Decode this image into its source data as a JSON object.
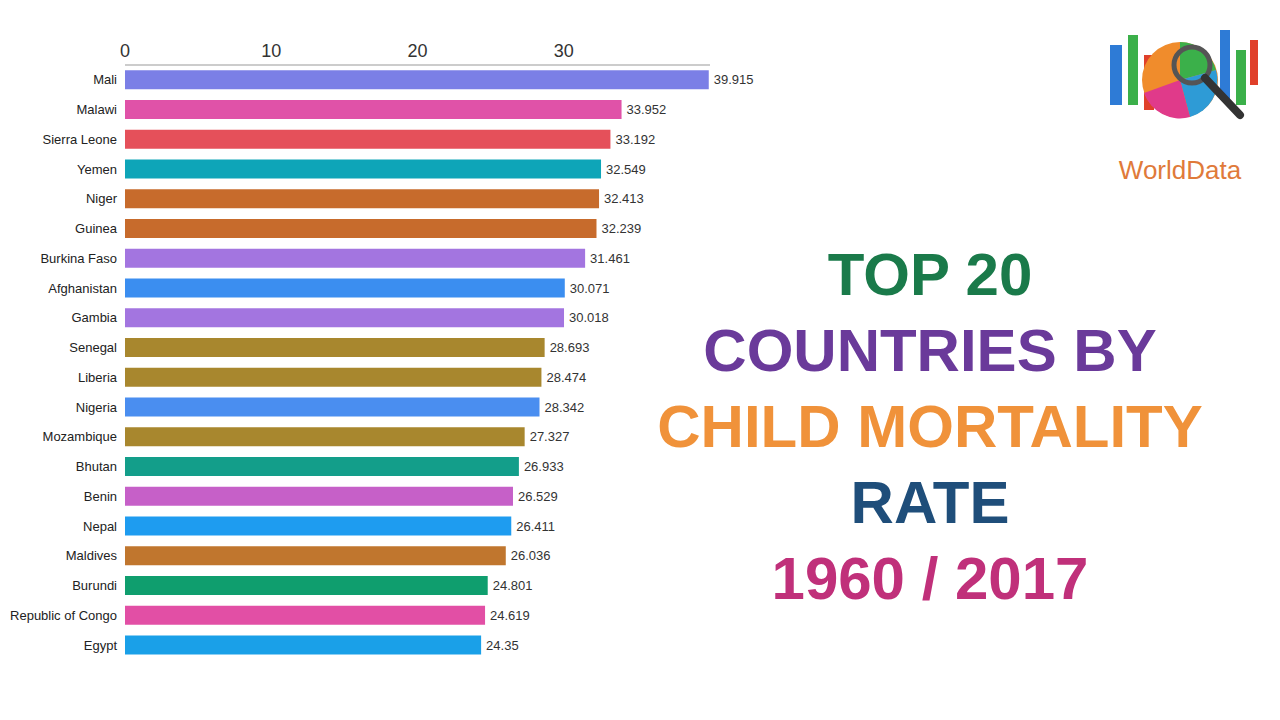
{
  "chart_data": {
    "type": "bar",
    "orientation": "horizontal",
    "title": "TOP 20\nCOUNTRIES BY\nCHILD MORTALITY\nRATE",
    "subtitle": "1960 / 2017",
    "annotations": [
      "WorldData"
    ],
    "categories": [
      "Mali",
      "Malawi",
      "Sierra Leone",
      "Yemen",
      "Niger",
      "Guinea",
      "Burkina Faso",
      "Afghanistan",
      "Gambia",
      "Senegal",
      "Liberia",
      "Nigeria",
      "Mozambique",
      "Bhutan",
      "Benin",
      "Nepal",
      "Maldives",
      "Burundi",
      "Republic of Congo",
      "Egypt"
    ],
    "values": [
      39.915,
      33.952,
      33.192,
      32.549,
      32.413,
      32.239,
      31.461,
      30.071,
      30.018,
      28.693,
      28.474,
      28.342,
      27.327,
      26.933,
      26.529,
      26.411,
      26.036,
      24.801,
      24.619,
      24.35
    ],
    "colors": [
      "#7b7fe6",
      "#e052a8",
      "#e5505a",
      "#0ea5b8",
      "#c76b2c",
      "#c76b2c",
      "#a375e0",
      "#3b8ef0",
      "#a375e0",
      "#a8872e",
      "#a8872e",
      "#4a8ef0",
      "#a8872e",
      "#139e8a",
      "#c660c8",
      "#1e9cf0",
      "#c0762e",
      "#0f9e6e",
      "#e24fa5",
      "#1aa0e8"
    ],
    "xlim": [
      0,
      40
    ],
    "xticks": [
      0,
      10,
      20,
      30
    ],
    "data_labels": true,
    "grid": false
  }
}
